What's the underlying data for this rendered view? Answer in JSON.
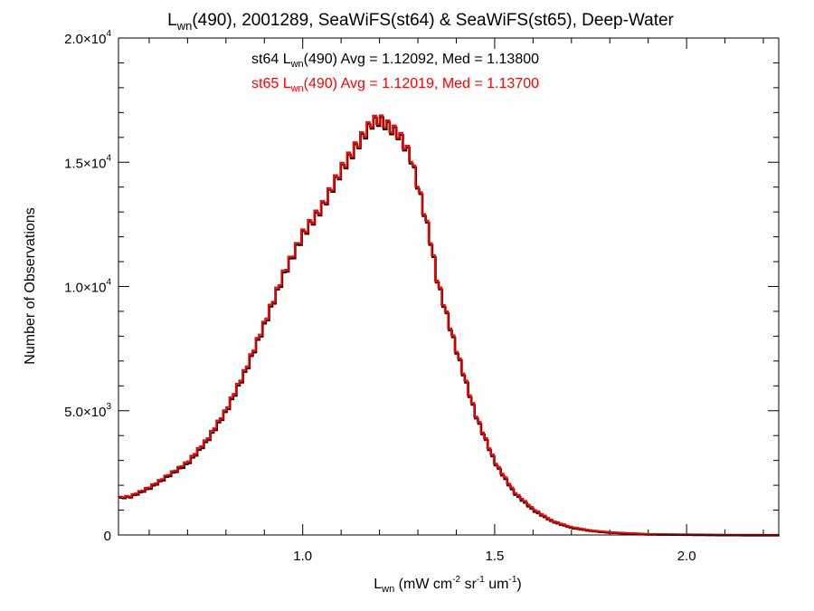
{
  "chart_data": {
    "type": "line",
    "title": {
      "main": "L",
      "sub": "wn",
      "rest": "(490), 2001289, SeaWiFS(st64) & SeaWiFS(st65), Deep-Water"
    },
    "xlabel": {
      "main": "L",
      "sub": "wn",
      "rest": " (mW cm",
      "sup1": "-2",
      "mid1": " sr",
      "sup2": "-1",
      "mid2": " um",
      "sup3": "-1",
      "end": ")"
    },
    "ylabel": "Number of Observations",
    "xlim": [
      0.52,
      2.24
    ],
    "ylim": [
      0,
      20000
    ],
    "x_ticks": [
      {
        "value": 1.0,
        "label": "1.0"
      },
      {
        "value": 1.5,
        "label": "1.5"
      },
      {
        "value": 2.0,
        "label": "2.0"
      }
    ],
    "y_ticks": [
      {
        "value": 0,
        "label": "0",
        "exp": ""
      },
      {
        "value": 5000,
        "label": "5.0×10",
        "exp": "3"
      },
      {
        "value": 10000,
        "label": "1.0×10",
        "exp": "4"
      },
      {
        "value": 15000,
        "label": "1.5×10",
        "exp": "4"
      },
      {
        "value": 20000,
        "label": "2.0×10",
        "exp": "4"
      }
    ],
    "annotations": [
      {
        "pre": "st64 L",
        "sub": "wn",
        "post": "(490) Avg = 1.12092, Med = 1.13800",
        "color": "#000000"
      },
      {
        "pre": "st65 L",
        "sub": "wn",
        "post": "(490) Avg = 1.12019, Med = 1.13700",
        "color": "#ff0000"
      }
    ],
    "x": [
      0.52,
      0.55,
      0.6,
      0.65,
      0.7,
      0.75,
      0.8,
      0.85,
      0.9,
      0.95,
      1.0,
      1.05,
      1.1,
      1.15,
      1.18,
      1.2,
      1.25,
      1.28,
      1.3,
      1.33,
      1.35,
      1.4,
      1.45,
      1.5,
      1.55,
      1.6,
      1.65,
      1.7,
      1.75,
      1.8,
      1.9,
      2.0,
      2.1,
      2.24
    ],
    "series": [
      {
        "name": "st64",
        "color": "#000000",
        "values": [
          1500,
          1550,
          1900,
          2400,
          2900,
          3800,
          5000,
          6600,
          8500,
          10500,
          12100,
          13200,
          14700,
          15900,
          16600,
          16700,
          16100,
          15200,
          14000,
          12000,
          10200,
          7400,
          4800,
          2900,
          1700,
          1000,
          550,
          300,
          180,
          110,
          40,
          25,
          10,
          5
        ]
      },
      {
        "name": "st65",
        "color": "#ff0000",
        "values": [
          1520,
          1570,
          1930,
          2430,
          2950,
          3850,
          5050,
          6650,
          8550,
          10550,
          12150,
          13250,
          14750,
          15950,
          16650,
          16750,
          16150,
          15250,
          14050,
          12050,
          10250,
          7450,
          4850,
          2950,
          1750,
          1050,
          580,
          320,
          190,
          115,
          42,
          26,
          11,
          5
        ]
      }
    ]
  }
}
